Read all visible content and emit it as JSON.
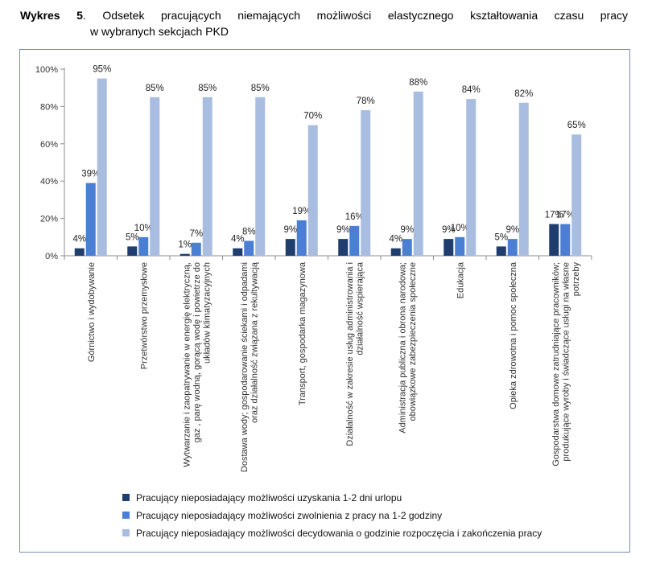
{
  "figure": {
    "label": "Wykres 5",
    "title_line1": "Odsetek pracujących niemających możliwości elastycznego kształtowania czasu pracy",
    "title_line2": "w wybranych sekcjach PKD"
  },
  "chart_data": {
    "type": "bar",
    "categories": [
      [
        "Górnictwo i wydobywanie"
      ],
      [
        "Przetwórstwo przemysłowe"
      ],
      [
        "Wytwarzanie i zaopatrywanie w energię elektryczną,",
        "gaz , parę wodną, gorącą wodę i powietrze do",
        "układów klimatyzacyjnych"
      ],
      [
        "Dostawa wody; gospodarowanie ściekami i odpadami",
        "oraz działalność związana z rekultywacją"
      ],
      [
        "Transport, gospodarka magazynowa"
      ],
      [
        "Działalność w zakresie usług administrowania i",
        "działalność wspierająca"
      ],
      [
        "Administracja publiczna i obrona narodowa;",
        "obowiązkowe zabezpieczenia społeczne"
      ],
      [
        "Edukacja"
      ],
      [
        "Opieka zdrowotna i pomoc społeczna"
      ],
      [
        "Gospodarstwa domowe zatrudniające pracowników;",
        "produkujące wyroby i świadczące usługi na własne",
        "potrzeby"
      ]
    ],
    "series": [
      {
        "name": "Pracujący nieposiadający  możliwości uzyskania 1-2 dni urlopu",
        "color": "#1f3d6e",
        "values": [
          4,
          5,
          1,
          4,
          9,
          9,
          4,
          9,
          5,
          17
        ],
        "labels": [
          "4%",
          "5%",
          "1%",
          "4%",
          "9%",
          "9%",
          "4%",
          "9%",
          "5%",
          "17%"
        ]
      },
      {
        "name": "Pracujący nieposiadający  możliwości zwolnienia z pracy  na 1-2 godziny",
        "color": "#4a7fd4",
        "values": [
          39,
          10,
          7,
          8,
          19,
          16,
          9,
          10,
          9,
          17
        ],
        "labels": [
          "39%",
          "10%",
          "7%",
          "8%",
          "19%",
          "16%",
          "9%",
          "10%",
          "9%",
          "17%"
        ]
      },
      {
        "name": "Pracujący nieposiadający możliwości decydowania o godzinie rozpoczęcia i zakończenia pracy",
        "color": "#a9bde0",
        "values": [
          95,
          85,
          85,
          85,
          70,
          78,
          88,
          84,
          82,
          65
        ],
        "labels": [
          "95%",
          "85%",
          "85%",
          "85%",
          "70%",
          "78%",
          "88%",
          "84%",
          "82%",
          "65%"
        ]
      }
    ],
    "y_ticks": [
      "0%",
      "20%",
      "40%",
      "60%",
      "80%",
      "100%"
    ],
    "ylim": [
      0,
      100
    ],
    "grid": false,
    "legend_position": "bottom"
  }
}
